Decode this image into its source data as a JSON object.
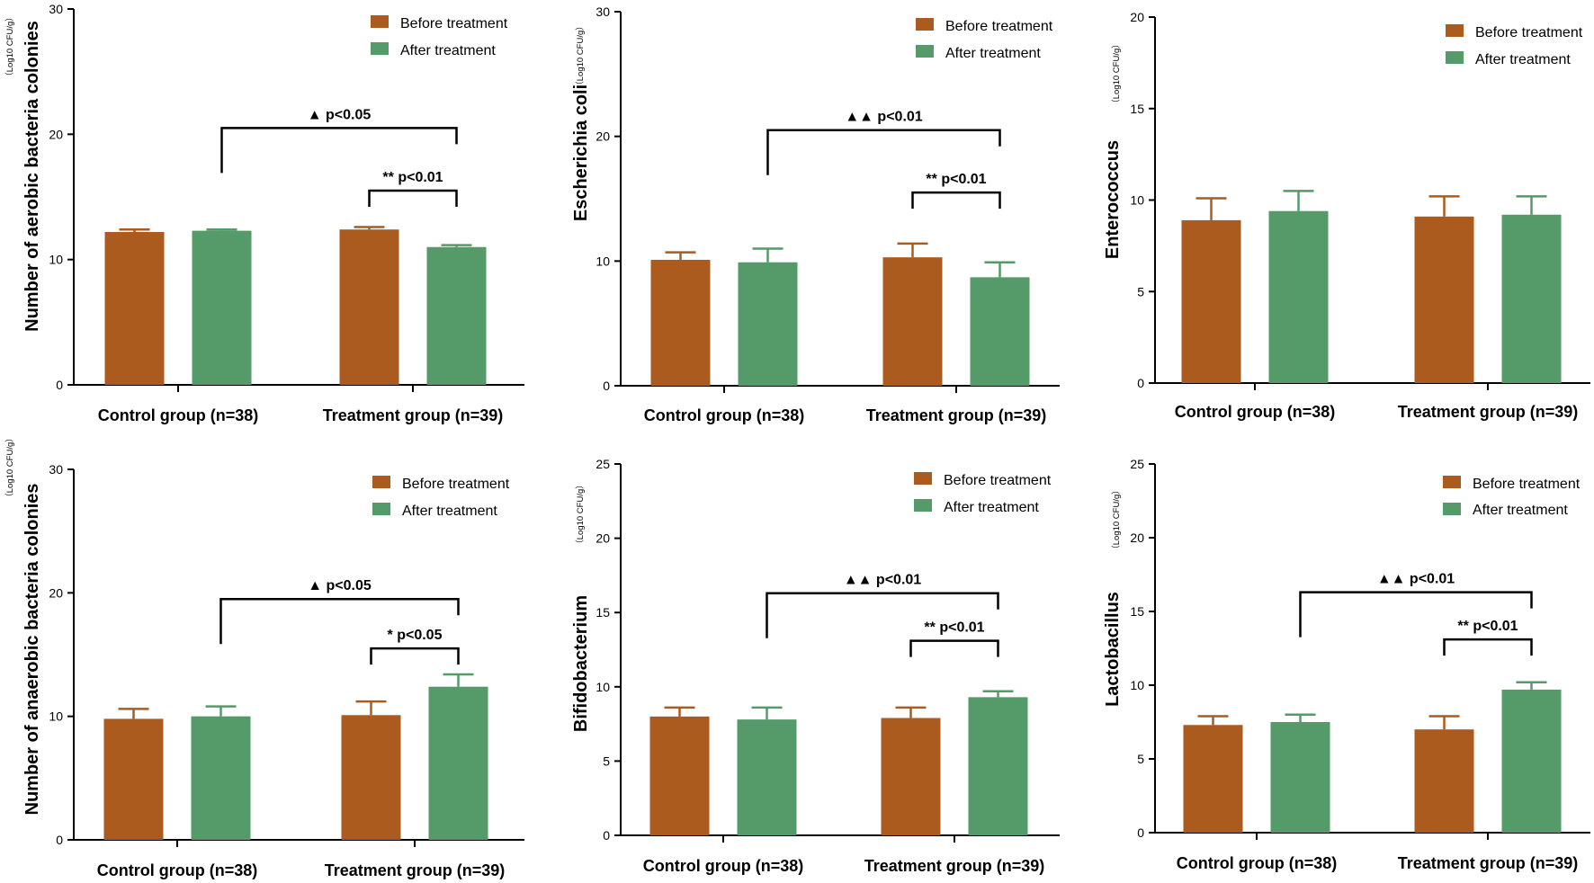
{
  "figure": {
    "colors": {
      "before": "#ab5b1e",
      "after": "#559a69",
      "error_before": "#ab5b1e",
      "error_after": "#559a69",
      "axis": "#000000"
    }
  },
  "chart_data": [
    {
      "type": "bar",
      "ylabel": "Number of aerobic bacteria colonies",
      "unit": "（Log10 CFU/g）",
      "yticks": [
        0,
        10,
        20,
        30
      ],
      "ylim": [
        0,
        30
      ],
      "legend": [
        "Before treatment",
        "After treatment"
      ],
      "categories": [
        "Control group (n=38)",
        "Treatment group (n=39)"
      ],
      "series": [
        {
          "name": "Before treatment",
          "values": [
            12.2,
            12.4
          ],
          "errors": [
            0.2,
            0.2
          ]
        },
        {
          "name": "After treatment",
          "values": [
            12.3,
            11.0
          ],
          "errors": [
            0.1,
            0.15
          ]
        }
      ],
      "annotations": [
        {
          "text": "▲ p<0.05",
          "from": [
            0,
            1
          ],
          "to": [
            1,
            1
          ],
          "level": 20.5
        },
        {
          "text": "** p<0.01",
          "from": [
            1,
            0
          ],
          "to": [
            1,
            1
          ],
          "level": 15.5
        }
      ]
    },
    {
      "type": "bar",
      "ylabel": "Escherichia coli",
      "unit": "（Log10 CFU/g）",
      "yticks": [
        0,
        10,
        20,
        30
      ],
      "ylim": [
        0,
        30
      ],
      "legend": [
        "Before treatment",
        "After treatment"
      ],
      "categories": [
        "Control group (n=38)",
        "Treatment group (n=39)"
      ],
      "series": [
        {
          "name": "Before treatment",
          "values": [
            10.1,
            10.3
          ],
          "errors": [
            0.6,
            1.1
          ]
        },
        {
          "name": "After treatment",
          "values": [
            9.9,
            8.7
          ],
          "errors": [
            1.1,
            1.2
          ]
        }
      ],
      "annotations": [
        {
          "text": "▲▲ p<0.01",
          "from": [
            0,
            1
          ],
          "to": [
            1,
            1
          ],
          "level": 20.5
        },
        {
          "text": "** p<0.01",
          "from": [
            1,
            0
          ],
          "to": [
            1,
            1
          ],
          "level": 15.5
        }
      ]
    },
    {
      "type": "bar",
      "ylabel": "Enterococcus",
      "unit": "（Log10 CFU/g）",
      "yticks": [
        0,
        5,
        10,
        15,
        20
      ],
      "ylim": [
        0,
        20
      ],
      "legend": [
        "Before treatment",
        "After treatment"
      ],
      "categories": [
        "Control group (n=38)",
        "Treatment group (n=39)"
      ],
      "series": [
        {
          "name": "Before treatment",
          "values": [
            8.9,
            9.1
          ],
          "errors": [
            1.2,
            1.1
          ]
        },
        {
          "name": "After treatment",
          "values": [
            9.4,
            9.2
          ],
          "errors": [
            1.1,
            1.0
          ]
        }
      ],
      "annotations": []
    },
    {
      "type": "bar",
      "ylabel": "Number of anaerobic bacteria colonies",
      "unit": "（Log10 CFU/g）",
      "yticks": [
        0,
        10,
        20,
        30
      ],
      "ylim": [
        0,
        30
      ],
      "legend": [
        "Before treatment",
        "After treatment"
      ],
      "categories": [
        "Control group (n=38)",
        "Treatment group (n=39)"
      ],
      "series": [
        {
          "name": "Before treatment",
          "values": [
            9.8,
            10.1
          ],
          "errors": [
            0.8,
            1.1
          ]
        },
        {
          "name": "After treatment",
          "values": [
            10.0,
            12.4
          ],
          "errors": [
            0.8,
            1.0
          ]
        }
      ],
      "annotations": [
        {
          "text": "▲ p<0.05",
          "from": [
            0,
            1
          ],
          "to": [
            1,
            1
          ],
          "level": 19.5
        },
        {
          "text": "* p<0.05",
          "from": [
            1,
            0
          ],
          "to": [
            1,
            1
          ],
          "level": 15.5
        }
      ]
    },
    {
      "type": "bar",
      "ylabel": "Bifidobacterium",
      "unit": "（Log10 CFU/g）",
      "yticks": [
        0,
        5,
        10,
        15,
        20,
        25
      ],
      "ylim": [
        0,
        25
      ],
      "legend": [
        "Before treatment",
        "After treatment"
      ],
      "categories": [
        "Control group (n=38)",
        "Treatment group (n=39)"
      ],
      "series": [
        {
          "name": "Before treatment",
          "values": [
            8.0,
            7.9
          ],
          "errors": [
            0.6,
            0.7
          ]
        },
        {
          "name": "After treatment",
          "values": [
            7.8,
            9.3
          ],
          "errors": [
            0.8,
            0.4
          ]
        }
      ],
      "annotations": [
        {
          "text": "▲▲ p<0.01",
          "from": [
            0,
            1
          ],
          "to": [
            1,
            1
          ],
          "level": 16.3
        },
        {
          "text": "** p<0.01",
          "from": [
            1,
            0
          ],
          "to": [
            1,
            1
          ],
          "level": 13.1
        }
      ]
    },
    {
      "type": "bar",
      "ylabel": "Lactobacillus",
      "unit": "（Log10 CFU/g）",
      "yticks": [
        0,
        5,
        10,
        15,
        20,
        25
      ],
      "ylim": [
        0,
        25
      ],
      "legend": [
        "Before treatment",
        "After treatment"
      ],
      "categories": [
        "Control group (n=38)",
        "Treatment group (n=39)"
      ],
      "series": [
        {
          "name": "Before treatment",
          "values": [
            7.3,
            7.0
          ],
          "errors": [
            0.6,
            0.9
          ]
        },
        {
          "name": "After treatment",
          "values": [
            7.5,
            9.7
          ],
          "errors": [
            0.5,
            0.5
          ]
        }
      ],
      "annotations": [
        {
          "text": "▲▲ p<0.01",
          "from": [
            0,
            1
          ],
          "to": [
            1,
            1
          ],
          "level": 16.3
        },
        {
          "text": "** p<0.01",
          "from": [
            1,
            0
          ],
          "to": [
            1,
            1
          ],
          "level": 13.1
        }
      ]
    }
  ]
}
